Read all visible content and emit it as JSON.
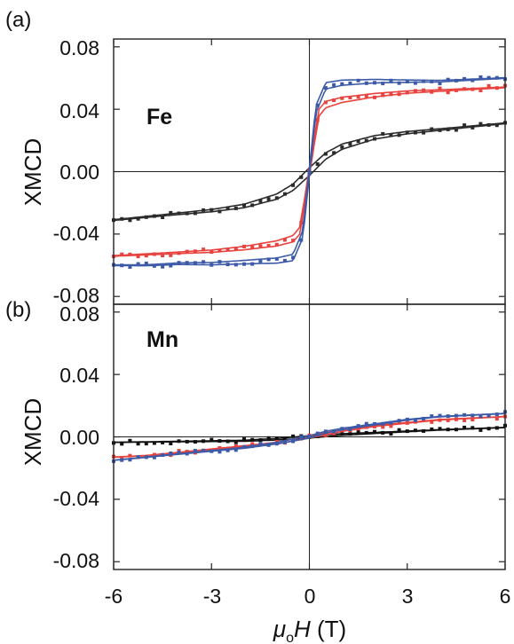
{
  "figure": {
    "xlabel": {
      "mu": "μ",
      "sub": "o",
      "H": "H",
      "unit": " (T)"
    }
  },
  "chart_data": [
    {
      "type": "line",
      "panel": "(a)",
      "annotation": "Fe",
      "xlabel": "μoH (T)",
      "ylabel": "XMCD",
      "xlim": [
        -6,
        6
      ],
      "ylim": [
        -0.085,
        0.085
      ],
      "xticks": [
        -6,
        -3,
        0,
        3,
        6
      ],
      "yticks": [
        -0.08,
        -0.04,
        0.0,
        0.04,
        0.08
      ],
      "ytick_labels": [
        "-0.08",
        "-0.04",
        "0.00",
        "0.04",
        "0.08"
      ],
      "grid": false,
      "zero_lines": true,
      "series": [
        {
          "color": "#2b2b2b",
          "x": [
            -6,
            -5,
            -4,
            -3,
            -2,
            -1.5,
            -1,
            -0.5,
            -0.25,
            0,
            0.25,
            0.5,
            1,
            1.5,
            2,
            3,
            4,
            5,
            6
          ],
          "y": [
            -0.031,
            -0.029,
            -0.027,
            -0.025,
            -0.022,
            -0.019,
            -0.016,
            -0.01,
            -0.005,
            0.0,
            0.005,
            0.01,
            0.016,
            0.019,
            0.022,
            0.025,
            0.027,
            0.029,
            0.031
          ]
        },
        {
          "color": "#e8433e",
          "x": [
            -6,
            -5,
            -4,
            -3,
            -2,
            -1,
            -0.5,
            -0.3,
            -0.15,
            0,
            0.15,
            0.3,
            0.5,
            1,
            2,
            3,
            4,
            5,
            6
          ],
          "y": [
            -0.054,
            -0.053,
            -0.052,
            -0.051,
            -0.049,
            -0.046,
            -0.043,
            -0.038,
            -0.02,
            0.0,
            0.02,
            0.038,
            0.043,
            0.046,
            0.049,
            0.051,
            0.052,
            0.053,
            0.054
          ]
        },
        {
          "color": "#3c5aa8",
          "x": [
            -6,
            -5,
            -4,
            -3,
            -2,
            -1,
            -0.5,
            -0.2,
            -0.1,
            0,
            0.1,
            0.2,
            0.5,
            1,
            2,
            3,
            4,
            5,
            6
          ],
          "y": [
            -0.06,
            -0.06,
            -0.059,
            -0.059,
            -0.058,
            -0.057,
            -0.055,
            -0.04,
            -0.02,
            0.0,
            0.02,
            0.04,
            0.055,
            0.057,
            0.058,
            0.058,
            0.058,
            0.059,
            0.06
          ]
        }
      ]
    },
    {
      "type": "line",
      "panel": "(b)",
      "annotation": "Mn",
      "xlabel": "μoH (T)",
      "ylabel": "XMCD",
      "xlim": [
        -6,
        6
      ],
      "ylim": [
        -0.085,
        0.085
      ],
      "xticks": [
        -6,
        -3,
        0,
        3,
        6
      ],
      "xtick_labels": [
        "-6",
        "-3",
        "0",
        "3",
        "6"
      ],
      "yticks": [
        -0.08,
        -0.04,
        0.0,
        0.04,
        0.08
      ],
      "ytick_labels": [
        "-0.08",
        "-0.04",
        "0.00",
        "0.04",
        "0.08"
      ],
      "grid": false,
      "zero_lines": true,
      "series": [
        {
          "color": "#111111",
          "x": [
            -6,
            -4,
            -2,
            -1,
            0,
            1,
            2,
            4,
            6
          ],
          "y": [
            -0.0035,
            -0.003,
            -0.0025,
            -0.0015,
            0.0,
            0.0015,
            0.0025,
            0.0045,
            0.006
          ]
        },
        {
          "color": "#e8433e",
          "x": [
            -6,
            -5,
            -4,
            -3,
            -2,
            -1,
            -0.5,
            0,
            0.5,
            1,
            2,
            3,
            4,
            5,
            6
          ],
          "y": [
            -0.013,
            -0.012,
            -0.01,
            -0.008,
            -0.006,
            -0.004,
            -0.002,
            0.0,
            0.002,
            0.004,
            0.007,
            0.009,
            0.011,
            0.012,
            0.013
          ]
        },
        {
          "color": "#3c5aa8",
          "x": [
            -6,
            -5,
            -4,
            -3,
            -2,
            -1,
            -0.5,
            0,
            0.5,
            1,
            2,
            3,
            4,
            5,
            6
          ],
          "y": [
            -0.015,
            -0.013,
            -0.011,
            -0.009,
            -0.007,
            -0.004,
            -0.002,
            0.0,
            0.003,
            0.005,
            0.008,
            0.011,
            0.013,
            0.014,
            0.015
          ]
        }
      ]
    }
  ]
}
